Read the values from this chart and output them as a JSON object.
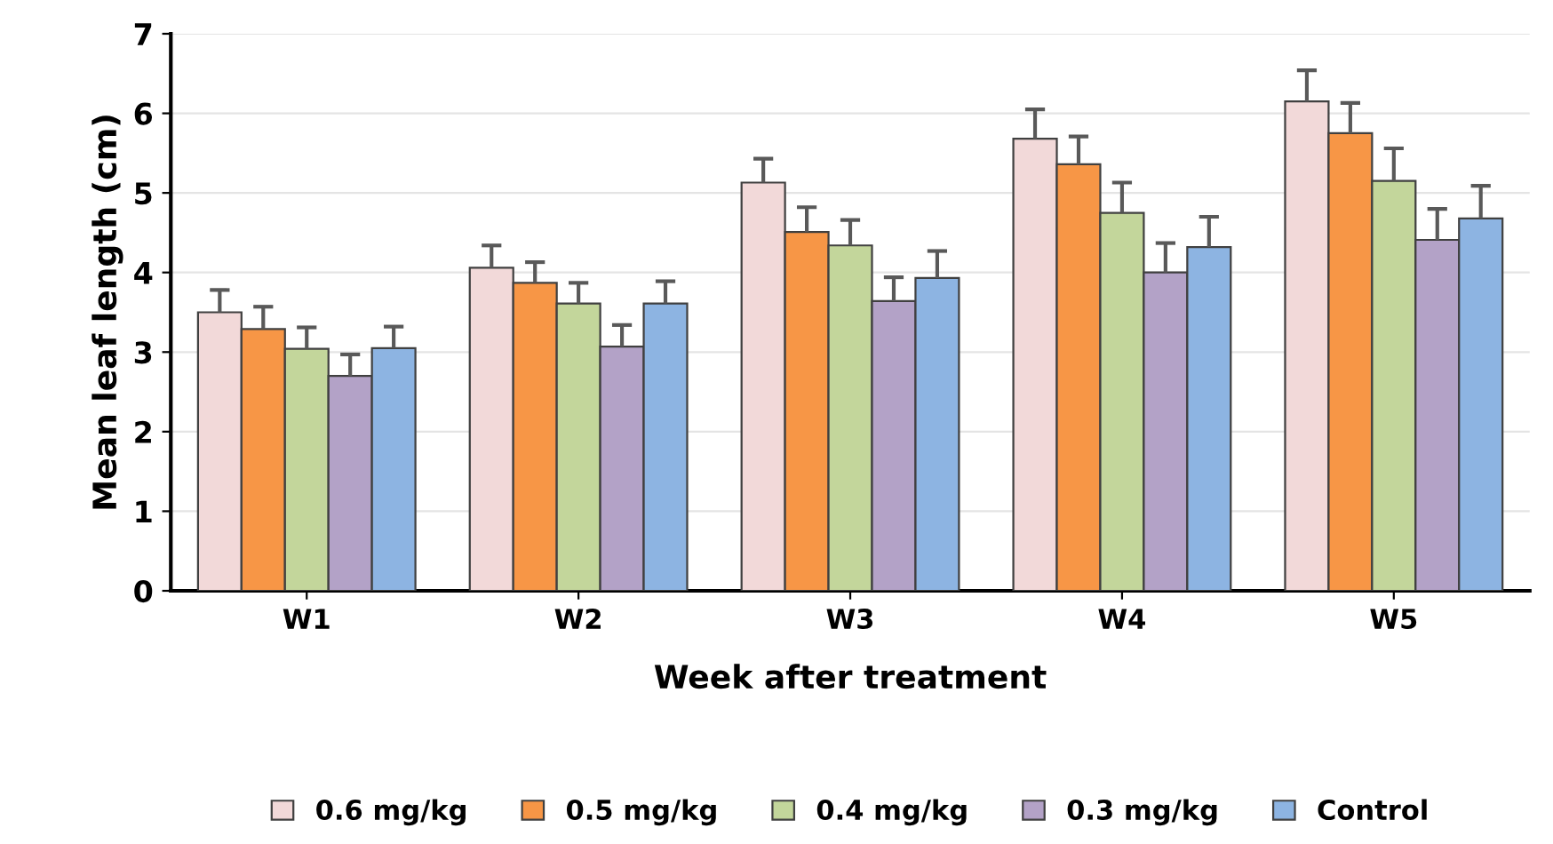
{
  "chart_data": {
    "type": "bar",
    "xlabel": "Week after treatment",
    "ylabel": "Mean leaf length (cm)",
    "categories": [
      "W1",
      "W2",
      "W3",
      "W4",
      "W5"
    ],
    "series": [
      {
        "name": "0.6 mg/kg",
        "color": "#f2d9d9",
        "values": [
          3.5,
          4.06,
          5.13,
          5.68,
          6.15
        ],
        "errors": [
          [
            3.5,
            3.78
          ],
          [
            4.06,
            4.34
          ],
          [
            5.13,
            5.43
          ],
          [
            5.68,
            6.05
          ],
          [
            6.15,
            6.54
          ]
        ]
      },
      {
        "name": "0.5 mg/kg",
        "color": "#f79646",
        "values": [
          3.29,
          3.87,
          4.51,
          5.36,
          5.75
        ],
        "errors": [
          [
            3.29,
            3.57
          ],
          [
            3.87,
            4.13
          ],
          [
            4.51,
            4.82
          ],
          [
            5.36,
            5.71
          ],
          [
            5.75,
            6.13
          ]
        ]
      },
      {
        "name": "0.4 mg/kg",
        "color": "#c3d69b",
        "values": [
          3.04,
          3.61,
          4.34,
          4.75,
          5.15
        ],
        "errors": [
          [
            3.04,
            3.31
          ],
          [
            3.61,
            3.87
          ],
          [
            4.34,
            4.66
          ],
          [
            4.75,
            5.13
          ],
          [
            5.15,
            5.56
          ]
        ]
      },
      {
        "name": "0.3 mg/kg",
        "color": "#b3a2c7",
        "values": [
          2.7,
          3.07,
          3.64,
          4.0,
          4.41
        ],
        "errors": [
          [
            2.7,
            2.97
          ],
          [
            3.07,
            3.34
          ],
          [
            3.64,
            3.94
          ],
          [
            4.0,
            4.37
          ],
          [
            4.41,
            4.8
          ]
        ]
      },
      {
        "name": "Control",
        "color": "#8db4e2",
        "values": [
          3.05,
          3.61,
          3.93,
          4.32,
          4.68
        ],
        "errors": [
          [
            3.05,
            3.32
          ],
          [
            3.61,
            3.89
          ],
          [
            3.93,
            4.27
          ],
          [
            4.32,
            4.7
          ],
          [
            4.68,
            5.09
          ]
        ]
      }
    ],
    "ylim": [
      0,
      7
    ],
    "yticks": [
      0,
      1,
      2,
      3,
      4,
      5,
      6,
      7
    ],
    "grid": "y",
    "legend": "bottom"
  }
}
